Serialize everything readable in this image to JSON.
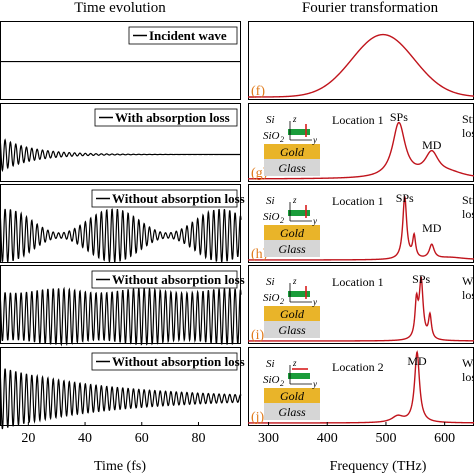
{
  "header": {
    "left": "Time evolution",
    "right": "Fourier transformation"
  },
  "chart_data": [
    {
      "type": "line",
      "title": "Time evolution",
      "xlabel": "Time (fs)",
      "ylabel": "",
      "xlim": [
        10,
        95
      ],
      "ylim": [
        -1,
        1
      ],
      "x_ticks": [
        {
          "value": 20,
          "label": "20"
        },
        {
          "value": 40,
          "label": "40"
        },
        {
          "value": 60,
          "label": "60"
        },
        {
          "value": 80,
          "label": "80"
        }
      ],
      "series": [
        {
          "name": "Incident wave",
          "amplitude": 0.0,
          "decay": 0,
          "shape": "flat",
          "color": "#000000"
        },
        {
          "name": "With absorption loss",
          "amplitude": 0.55,
          "decay": 0.09,
          "shape": "decay",
          "color": "#000000"
        },
        {
          "name": "Without absorption loss",
          "amplitude": 0.85,
          "decay": 0.005,
          "shape": "beat",
          "color": "#000000"
        },
        {
          "name": "Without absorption loss",
          "amplitude": 0.9,
          "decay": 0.0,
          "shape": "steady",
          "color": "#000000"
        },
        {
          "name": "Without absorption loss",
          "amplitude": 1.0,
          "decay": 0.025,
          "shape": "decay",
          "color": "#000000"
        }
      ]
    },
    {
      "type": "line",
      "title": "Fourier transformation",
      "xlabel": "Frequency (THz)",
      "ylabel": "",
      "xlim": [
        265,
        650
      ],
      "x_ticks": [
        {
          "value": 300,
          "label": "300"
        },
        {
          "value": 400,
          "label": "400"
        },
        {
          "value": 500,
          "label": "500"
        },
        {
          "value": 600,
          "label": "600"
        }
      ],
      "color": "#c0141c",
      "panels": [
        {
          "label": "(f)",
          "location": "",
          "annotations": []
        },
        {
          "label": "(g)",
          "location": "Location 1",
          "annotations": [
            {
              "text": "SPs",
              "x": 522
            },
            {
              "text": "MD",
              "x": 578
            },
            {
              "text": "Stro",
              "x": 630
            },
            {
              "text": "loss",
              "x": 634
            }
          ]
        },
        {
          "label": "(h)",
          "location": "Location 1",
          "annotations": [
            {
              "text": "SPs",
              "x": 532
            },
            {
              "text": "MD",
              "x": 578
            },
            {
              "text": "Stro",
              "x": 630
            },
            {
              "text": "loss",
              "x": 634
            }
          ]
        },
        {
          "label": "(i)",
          "location": "Location 1",
          "annotations": [
            {
              "text": "SPs",
              "x": 560
            },
            {
              "text": "Wea",
              "x": 630
            },
            {
              "text": "loss",
              "x": 634
            }
          ]
        },
        {
          "label": "(j)",
          "location": "Location 2",
          "annotations": [
            {
              "text": "MD",
              "x": 553
            },
            {
              "text": "Wea",
              "x": 630
            },
            {
              "text": "loss",
              "x": 634
            }
          ]
        }
      ],
      "peaks": [
        [
          {
            "x": 495,
            "w": 130,
            "h": 0.8
          }
        ],
        [
          {
            "x": 522,
            "w": 13,
            "h": 0.7
          },
          {
            "x": 578,
            "w": 14,
            "h": 0.3
          },
          {
            "x": 610,
            "w": 30,
            "h": 0.06
          }
        ],
        [
          {
            "x": 532,
            "w": 4,
            "h": 0.8
          },
          {
            "x": 548,
            "w": 3,
            "h": 0.28
          },
          {
            "x": 578,
            "w": 5,
            "h": 0.18
          },
          {
            "x": 610,
            "w": 30,
            "h": 0.03
          }
        ],
        [
          {
            "x": 552,
            "w": 3,
            "h": 0.45
          },
          {
            "x": 560,
            "w": 4,
            "h": 0.75
          },
          {
            "x": 575,
            "w": 3,
            "h": 0.3
          }
        ],
        [
          {
            "x": 553,
            "w": 5,
            "h": 0.9
          },
          {
            "x": 520,
            "w": 12,
            "h": 0.08
          }
        ]
      ]
    }
  ],
  "inset": {
    "si": "Si",
    "sio2": "SiO",
    "sio2_sub": "2",
    "gold": "Gold",
    "glass": "Glass",
    "z": "z",
    "y": "y",
    "colors": {
      "si": "#1a9c3a",
      "gold": "#e9b429",
      "glass": "#d6d6d6",
      "arrow": "#d81e1e"
    }
  },
  "colors": {
    "time_line": "#000000",
    "freq_line": "#c0141c",
    "panel_label": "#e07a1a"
  }
}
